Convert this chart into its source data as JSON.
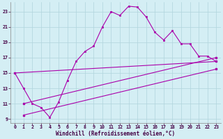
{
  "xlabel": "Windchill (Refroidissement éolien,°C)",
  "xlim": [
    -0.5,
    23.5
  ],
  "ylim": [
    8.5,
    24.2
  ],
  "xticks": [
    0,
    1,
    2,
    3,
    4,
    5,
    6,
    7,
    8,
    9,
    10,
    11,
    12,
    13,
    14,
    15,
    16,
    17,
    18,
    19,
    20,
    21,
    22,
    23
  ],
  "yticks": [
    9,
    11,
    13,
    15,
    17,
    19,
    21,
    23
  ],
  "bg_color": "#d4eef4",
  "grid_color": "#b0d4dc",
  "line_color": "#aa00aa",
  "line1_x": [
    0,
    1,
    2,
    3,
    4,
    5,
    6,
    7,
    8,
    9,
    10,
    11,
    12,
    13,
    14,
    15,
    16,
    17,
    18,
    19,
    20,
    21,
    22,
    23
  ],
  "line1_y": [
    15,
    13,
    11,
    10.5,
    9.2,
    11.2,
    14.0,
    16.5,
    17.8,
    18.5,
    21.0,
    23.0,
    22.5,
    23.7,
    23.6,
    22.3,
    20.3,
    19.3,
    20.5,
    18.8,
    18.8,
    17.2,
    17.2,
    16.5
  ],
  "line2_x": [
    0,
    23
  ],
  "line2_y": [
    15.0,
    16.5
  ],
  "line3_x": [
    1,
    23
  ],
  "line3_y": [
    11.0,
    17.0
  ],
  "line4_x": [
    1,
    23
  ],
  "line4_y": [
    9.5,
    15.5
  ]
}
